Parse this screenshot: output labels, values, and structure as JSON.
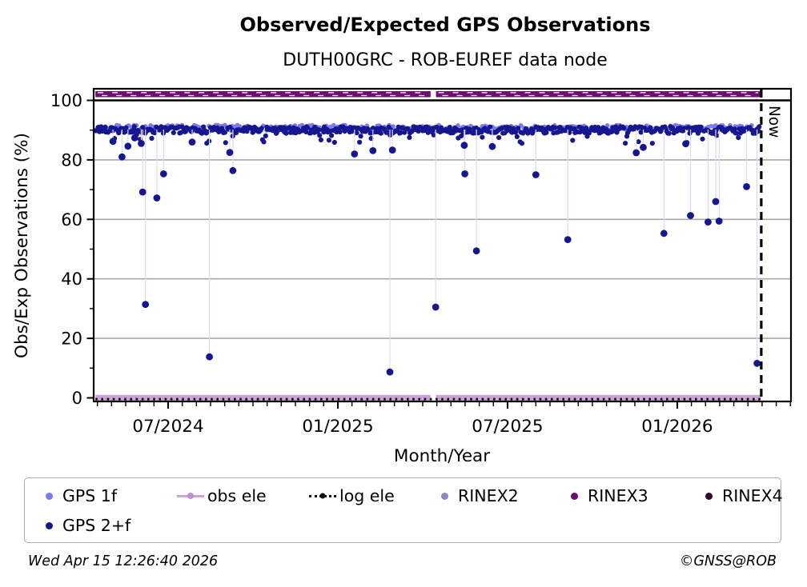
{
  "title": "Observed/Expected GPS Observations",
  "subtitle": "DUTH00GRC - ROB-EUREF data node",
  "footer": {
    "timestamp": "Wed Apr 15 12:26:40 2026",
    "copyright": "©GNSS@ROB"
  },
  "legend": {
    "items": [
      {
        "label": "GPS 1f",
        "marker": "dot",
        "color": "#7b7bee",
        "row": 0
      },
      {
        "label": "obs ele",
        "marker": "line-dot",
        "color": "#cda2d8",
        "dot_color": "#c28fcb",
        "row": 0
      },
      {
        "label": "log ele",
        "marker": "dotted-line-dot",
        "color": "#111111",
        "dot_color": "#111111",
        "row": 0
      },
      {
        "label": "RINEX2",
        "marker": "dot",
        "color": "#9186c8",
        "row": 0
      },
      {
        "label": "RINEX3",
        "marker": "dot",
        "color": "#6e0e6e",
        "row": 0
      },
      {
        "label": "RINEX4",
        "marker": "dot",
        "color": "#300a30",
        "row": 0
      },
      {
        "label": "GPS 2+f",
        "marker": "dot",
        "color": "#16168f",
        "row": 1
      }
    ]
  },
  "chart_data": {
    "type": "scatter",
    "title": "Observed/Expected GPS Observations",
    "subtitle": "DUTH00GRC - ROB-EUREF data node",
    "xlabel": "Month/Year",
    "ylabel": "Obs/Exp Observations (%)",
    "ylim": [
      -1.2,
      104
    ],
    "x_axis": {
      "unit": "months relative to 2024-07",
      "domain": [
        -2.63,
        22.0
      ],
      "data_range": [
        -2.57,
        20.95
      ],
      "major_ticks": [
        {
          "m": 0,
          "label": "07/2024"
        },
        {
          "m": 6,
          "label": "01/2025"
        },
        {
          "m": 12,
          "label": "07/2025"
        },
        {
          "m": 18,
          "label": "01/2026"
        }
      ],
      "minor_tick_step": 0.5,
      "minor_tick_range": [
        -2.5,
        22
      ]
    },
    "y_axis": {
      "major_ticks": [
        0,
        20,
        40,
        60,
        80,
        100
      ],
      "minor_ticks": [
        10,
        30,
        50,
        70,
        90
      ],
      "gridlines": [
        20,
        40,
        60,
        80
      ],
      "reference_line": 100
    },
    "now_line": {
      "m": 20.97,
      "label": "Now"
    },
    "series": [
      {
        "name": "RINEX3",
        "kind": "hband",
        "y": 102.1,
        "color": "#6e0e6e",
        "gaps_m": [
          [
            9.28,
            9.47
          ]
        ],
        "white_dash_texture": true
      },
      {
        "name": "obs ele",
        "kind": "hband",
        "y": 0,
        "color": "#cda2d8",
        "gaps_m": [
          [
            9.28,
            9.47
          ]
        ],
        "white_dash_texture": false
      },
      {
        "name": "log ele",
        "kind": "dotted-line",
        "y": -0.45,
        "color": "#111111"
      },
      {
        "name": "GPS 1f",
        "kind": "band-scatter",
        "color": "#7b7bee",
        "y_min": 89.8,
        "y_max": 91.7,
        "step_m": 0.085,
        "radius": 2.8
      },
      {
        "name": "GPS 2+f",
        "kind": "band-scatter",
        "color": "#16168f",
        "y_min": 88.9,
        "y_max": 91.2,
        "step_m": 0.042,
        "radius": 3.1,
        "dip": {
          "rate": 0.055,
          "y_min": 85.5,
          "y_max": 88.8
        }
      },
      {
        "name": "GPS 2+f outliers",
        "kind": "scatter",
        "color": "#16168f",
        "radius": 4.4,
        "droplines": true,
        "dropline_color": "#dcdcf2",
        "points": [
          [
            -1.95,
            86.2
          ],
          [
            -1.63,
            81.0
          ],
          [
            -1.42,
            84.6
          ],
          [
            -1.18,
            87.4
          ],
          [
            -0.95,
            85.5
          ],
          [
            -0.9,
            69.2
          ],
          [
            -0.8,
            31.4
          ],
          [
            -0.4,
            67.2
          ],
          [
            -0.16,
            75.3
          ],
          [
            0.85,
            86.0
          ],
          [
            1.46,
            13.8
          ],
          [
            2.18,
            82.5
          ],
          [
            2.29,
            76.4
          ],
          [
            6.59,
            82.0
          ],
          [
            7.24,
            83.1
          ],
          [
            7.84,
            8.7
          ],
          [
            7.93,
            83.3
          ],
          [
            9.46,
            30.5
          ],
          [
            10.47,
            84.9
          ],
          [
            10.49,
            75.3
          ],
          [
            10.9,
            49.4
          ],
          [
            11.46,
            84.5
          ],
          [
            13.0,
            75.0
          ],
          [
            14.13,
            53.2
          ],
          [
            16.55,
            82.4
          ],
          [
            16.8,
            84.2
          ],
          [
            17.53,
            55.3
          ],
          [
            18.3,
            85.4
          ],
          [
            18.47,
            61.3
          ],
          [
            19.09,
            59.1
          ],
          [
            19.36,
            66.0
          ],
          [
            19.48,
            59.4
          ],
          [
            20.45,
            71.0
          ],
          [
            20.82,
            11.6
          ]
        ]
      }
    ],
    "style_colors": {
      "grid": "#a8a8a8",
      "frame": "#000000",
      "dropline": "#dcdcf2"
    }
  }
}
